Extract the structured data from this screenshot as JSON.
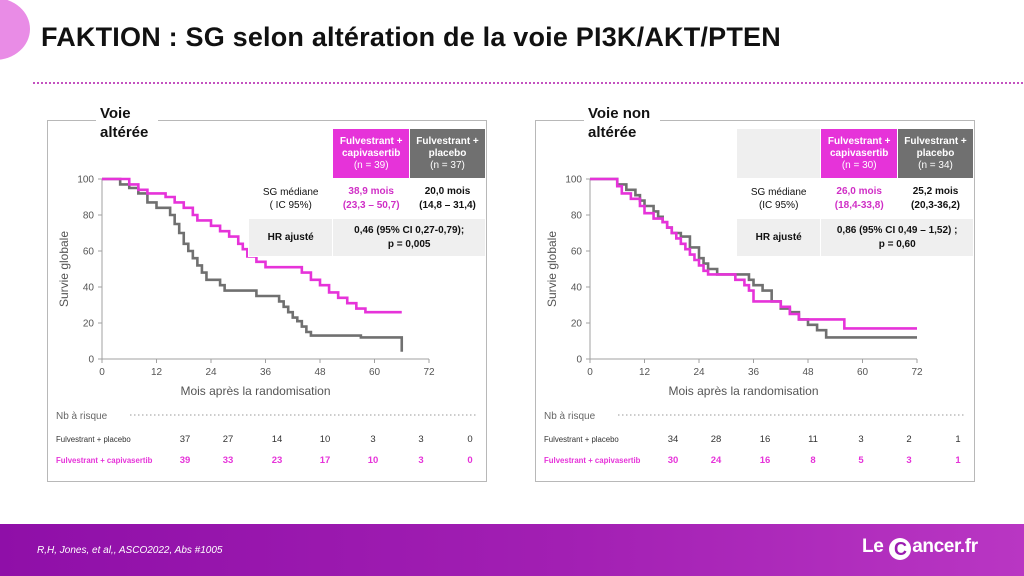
{
  "slide": {
    "title": "FAKTION : SG selon altération de la voie PI3K/AKT/PTEN",
    "citation": "R,H, Jones, et al,,  ASCO2022, Abs #1005",
    "logo_prefix": "Le",
    "logo_c": "C",
    "logo_suffix": "ancer.fr"
  },
  "colors": {
    "capivasertib": "#e633d9",
    "placebo": "#707070",
    "footer": "#a21fb3"
  },
  "chart_data": [
    {
      "type": "line",
      "panel_label": [
        "Voie",
        "altérée"
      ],
      "xlabel": "Mois après la randomisation",
      "ylabel": "Survie globale",
      "xlim": [
        0,
        72
      ],
      "ylim": [
        0,
        100
      ],
      "xticks": [
        "0",
        "12",
        "24",
        "36",
        "48",
        "60",
        "72"
      ],
      "yticks": [
        "0",
        "20",
        "40",
        "60",
        "80",
        "100"
      ],
      "series": [
        {
          "key": "placebo",
          "values_xy": [
            [
              0,
              100
            ],
            [
              2,
              100
            ],
            [
              4,
              97
            ],
            [
              6,
              95
            ],
            [
              8,
              92
            ],
            [
              10,
              87
            ],
            [
              12,
              84
            ],
            [
              14,
              84
            ],
            [
              15,
              80
            ],
            [
              16,
              75
            ],
            [
              17,
              70
            ],
            [
              18,
              64
            ],
            [
              19,
              60
            ],
            [
              20,
              56
            ],
            [
              21,
              52
            ],
            [
              22,
              48
            ],
            [
              23,
              44
            ],
            [
              25,
              44
            ],
            [
              26,
              41
            ],
            [
              27,
              38
            ],
            [
              30,
              38
            ],
            [
              33,
              38
            ],
            [
              34,
              35
            ],
            [
              38,
              35
            ],
            [
              39,
              32
            ],
            [
              40,
              29
            ],
            [
              41,
              26
            ],
            [
              42,
              23
            ],
            [
              43,
              21
            ],
            [
              44,
              18
            ],
            [
              45,
              15
            ],
            [
              46,
              13
            ],
            [
              48,
              13
            ],
            [
              50,
              13
            ],
            [
              52,
              13
            ],
            [
              57,
              12
            ],
            [
              62,
              12
            ],
            [
              66,
              12
            ],
            [
              66,
              4
            ]
          ]
        },
        {
          "key": "capivasertib",
          "values_xy": [
            [
              0,
              100
            ],
            [
              3,
              100
            ],
            [
              6,
              97
            ],
            [
              8,
              94
            ],
            [
              10,
              92
            ],
            [
              12,
              92
            ],
            [
              14,
              90
            ],
            [
              16,
              87
            ],
            [
              18,
              84
            ],
            [
              20,
              80
            ],
            [
              21,
              77
            ],
            [
              24,
              74
            ],
            [
              26,
              71
            ],
            [
              28,
              68
            ],
            [
              30,
              64
            ],
            [
              31,
              61
            ],
            [
              32,
              57
            ],
            [
              34,
              54
            ],
            [
              36,
              51
            ],
            [
              40,
              51
            ],
            [
              44,
              48
            ],
            [
              46,
              44
            ],
            [
              48,
              41
            ],
            [
              50,
              37
            ],
            [
              52,
              34
            ],
            [
              54,
              31
            ],
            [
              56,
              28
            ],
            [
              58,
              26
            ],
            [
              66,
              26
            ]
          ]
        }
      ],
      "table": {
        "col_cap": [
          "Fulvestrant +",
          "capivasertib",
          "(n = 39)"
        ],
        "col_pla": [
          "Fulvestrant +",
          "placebo",
          "(n = 37)"
        ],
        "row_sg_label": [
          "SG médiane",
          "( IC 95%)"
        ],
        "sg_cap": [
          "38,9 mois",
          "(23,3 – 50,7)"
        ],
        "sg_pla": [
          "20,0 mois",
          "(14,8 – 31,4)"
        ],
        "hr_label": "HR ajusté",
        "hr_value": [
          "0,46 (95% CI 0,27-0,79);",
          "p = 0,005"
        ]
      },
      "risk": {
        "header": "Nb à risque",
        "rows": [
          {
            "label": "Fulvestrant + placebo",
            "values": [
              "37",
              "27",
              "14",
              "10",
              "3",
              "3",
              "0"
            ]
          },
          {
            "label": "Fulvestrant + capivasertib",
            "values": [
              "39",
              "33",
              "23",
              "17",
              "10",
              "3",
              "0"
            ]
          }
        ]
      }
    },
    {
      "type": "line",
      "panel_label": [
        "Voie non",
        "altérée"
      ],
      "xlabel": "Mois après la randomisation",
      "ylabel": "Survie globale",
      "xlim": [
        0,
        72
      ],
      "ylim": [
        0,
        100
      ],
      "xticks": [
        "0",
        "12",
        "24",
        "36",
        "48",
        "60",
        "72"
      ],
      "yticks": [
        "0",
        "20",
        "40",
        "60",
        "80",
        "100"
      ],
      "series": [
        {
          "key": "placebo",
          "values_xy": [
            [
              0,
              100
            ],
            [
              4,
              100
            ],
            [
              6,
              97
            ],
            [
              8,
              94
            ],
            [
              10,
              91
            ],
            [
              11,
              88
            ],
            [
              12,
              85
            ],
            [
              14,
              82
            ],
            [
              15,
              79
            ],
            [
              16,
              76
            ],
            [
              17,
              73
            ],
            [
              18,
              70
            ],
            [
              20,
              68
            ],
            [
              22,
              62
            ],
            [
              24,
              56
            ],
            [
              25,
              53
            ],
            [
              26,
              50
            ],
            [
              28,
              47
            ],
            [
              30,
              47
            ],
            [
              34,
              47
            ],
            [
              35,
              44
            ],
            [
              36,
              41
            ],
            [
              38,
              38
            ],
            [
              40,
              32
            ],
            [
              42,
              28
            ],
            [
              44,
              26
            ],
            [
              46,
              22
            ],
            [
              48,
              19
            ],
            [
              50,
              16
            ],
            [
              52,
              12
            ],
            [
              62,
              12
            ],
            [
              72,
              12
            ]
          ]
        },
        {
          "key": "capivasertib",
          "values_xy": [
            [
              0,
              100
            ],
            [
              5,
              100
            ],
            [
              6,
              96
            ],
            [
              7,
              92
            ],
            [
              9,
              89
            ],
            [
              11,
              85
            ],
            [
              12,
              81
            ],
            [
              14,
              78
            ],
            [
              16,
              76
            ],
            [
              17,
              73
            ],
            [
              18,
              70
            ],
            [
              19,
              67
            ],
            [
              20,
              64
            ],
            [
              21,
              61
            ],
            [
              22,
              58
            ],
            [
              23,
              55
            ],
            [
              24,
              52
            ],
            [
              25,
              49
            ],
            [
              26,
              47
            ],
            [
              31,
              47
            ],
            [
              32,
              44
            ],
            [
              34,
              41
            ],
            [
              35,
              38
            ],
            [
              36,
              32
            ],
            [
              40,
              32
            ],
            [
              42,
              29
            ],
            [
              44,
              25
            ],
            [
              46,
              22
            ],
            [
              54,
              22
            ],
            [
              56,
              17
            ],
            [
              72,
              17
            ]
          ]
        }
      ],
      "table": {
        "col_cap": [
          "Fulvestrant +",
          "capivasertib",
          "(n = 30)"
        ],
        "col_pla": [
          "Fulvestrant +",
          "placebo",
          "(n = 34)"
        ],
        "row_sg_label": [
          "SG médiane",
          "(IC 95%)"
        ],
        "sg_cap": [
          "26,0 mois",
          "(18,4-33,8)"
        ],
        "sg_pla": [
          "25,2 mois",
          "(20,3-36,2)"
        ],
        "hr_label": "HR ajusté",
        "hr_value": [
          "0,86 (95% CI 0,49 – 1,52) ;",
          "p = 0,60"
        ]
      },
      "risk": {
        "header": "Nb à risque",
        "rows": [
          {
            "label": "Fulvestrant + placebo",
            "values": [
              "34",
              "28",
              "16",
              "11",
              "3",
              "2",
              "1"
            ]
          },
          {
            "label": "Fulvestrant + capivasertib",
            "values": [
              "30",
              "24",
              "16",
              "8",
              "5",
              "3",
              "1"
            ]
          }
        ]
      }
    }
  ]
}
